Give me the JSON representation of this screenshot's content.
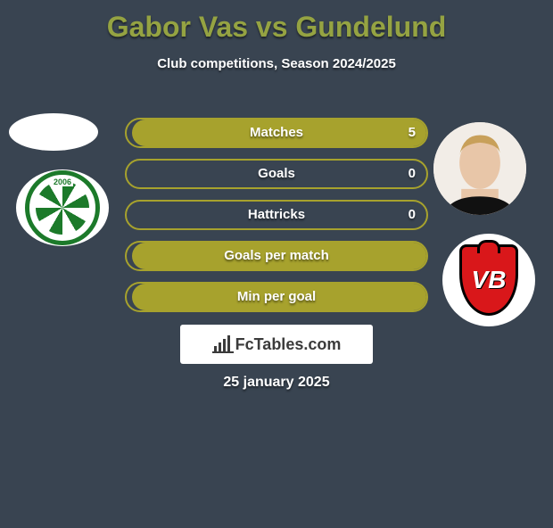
{
  "title": "Gabor Vas vs Gundelund",
  "subtitle": "Club competitions, Season 2024/2025",
  "date": "25 january 2025",
  "site": "FcTables.com",
  "theme": {
    "background": "#394451",
    "accent": "#95a342",
    "bar_border": "#a7a22d",
    "bar_fill": "#a7a22d",
    "text": "#ffffff",
    "badge_bg": "#ffffff",
    "badge_text": "#3b3b3b"
  },
  "left_club": {
    "year_top": "2006",
    "color": "#1c7a2a"
  },
  "right_club": {
    "initials": "VB",
    "shield_color": "#d9171a"
  },
  "bars": [
    {
      "label": "Matches",
      "left": "",
      "right": "5",
      "fill_left_pct": 0,
      "fill_right_pct": 97
    },
    {
      "label": "Goals",
      "left": "",
      "right": "0",
      "fill_left_pct": 0,
      "fill_right_pct": 0
    },
    {
      "label": "Hattricks",
      "left": "",
      "right": "0",
      "fill_left_pct": 0,
      "fill_right_pct": 0
    },
    {
      "label": "Goals per match",
      "left": "",
      "right": "",
      "fill_left_pct": 0,
      "fill_right_pct": 97
    },
    {
      "label": "Min per goal",
      "left": "",
      "right": "",
      "fill_left_pct": 0,
      "fill_right_pct": 97
    }
  ]
}
